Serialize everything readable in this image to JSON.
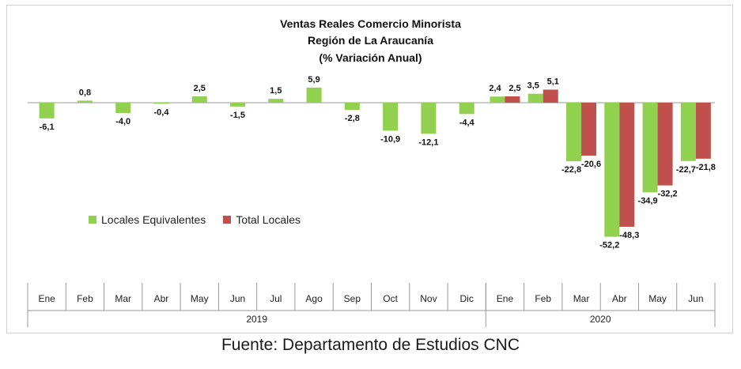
{
  "chart_data": {
    "type": "bar",
    "title": [
      "Ventas Reales Comercio Minorista",
      "Región de La Araucanía",
      "(% Variación Anual)"
    ],
    "categories": [
      "Ene",
      "Feb",
      "Mar",
      "Abr",
      "May",
      "Jun",
      "Jul",
      "Ago",
      "Sep",
      "Oct",
      "Nov",
      "Dic",
      "Ene",
      "Feb",
      "Mar",
      "Abr",
      "May",
      "Jun"
    ],
    "years": [
      {
        "label": "2019",
        "start": 0,
        "count": 12
      },
      {
        "label": "2020",
        "start": 12,
        "count": 6
      }
    ],
    "series": [
      {
        "name": "Locales Equivalentes",
        "color": "#92d050",
        "values": [
          -6.1,
          0.8,
          -4.0,
          -0.4,
          2.5,
          -1.5,
          1.5,
          5.9,
          -2.8,
          -10.9,
          -12.1,
          -4.4,
          2.4,
          3.5,
          -22.8,
          -52.2,
          -34.9,
          -22.7
        ],
        "labels": [
          "-6,1",
          "0,8",
          "-4,0",
          "-0,4",
          "2,5",
          "-1,5",
          "1,5",
          "5,9",
          "-2,8",
          "-10,9",
          "-12,1",
          "-4,4",
          "2,4",
          "3,5",
          "-22,8",
          "-52,2",
          "-34,9",
          "-22,7"
        ]
      },
      {
        "name": "Total Locales",
        "color": "#c0504d",
        "values": [
          null,
          null,
          null,
          null,
          null,
          null,
          null,
          null,
          null,
          null,
          null,
          null,
          2.5,
          5.1,
          -20.6,
          -48.3,
          -32.2,
          -21.8
        ],
        "labels": [
          null,
          null,
          null,
          null,
          null,
          null,
          null,
          null,
          null,
          null,
          null,
          null,
          "2,5",
          "5,1",
          "-20,6",
          "-48,3",
          "-32,2",
          "-21,8"
        ]
      }
    ],
    "legend_position": "left-middle",
    "grid": false
  },
  "source": "Fuente: Departamento de Estudios CNC"
}
